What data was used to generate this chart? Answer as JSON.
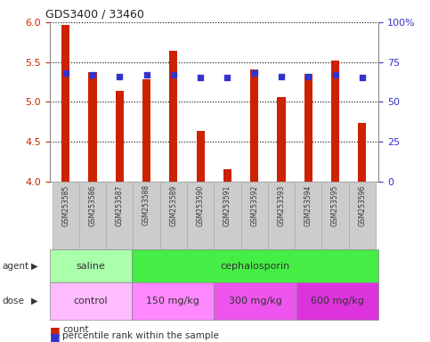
{
  "title": "GDS3400 / 33460",
  "samples": [
    "GSM253585",
    "GSM253586",
    "GSM253587",
    "GSM253588",
    "GSM253589",
    "GSM253590",
    "GSM253591",
    "GSM253592",
    "GSM253593",
    "GSM253594",
    "GSM253595",
    "GSM253596"
  ],
  "counts": [
    5.97,
    5.37,
    5.14,
    5.28,
    5.64,
    4.63,
    4.15,
    5.41,
    5.06,
    5.35,
    5.52,
    4.73
  ],
  "percentile_ranks": [
    68,
    67,
    66,
    67,
    67,
    65,
    65,
    68,
    66,
    66,
    67,
    65
  ],
  "ylim": [
    4.0,
    6.0
  ],
  "yticks": [
    4.0,
    4.5,
    5.0,
    5.5,
    6.0
  ],
  "y2lim": [
    0,
    100
  ],
  "y2ticks": [
    0,
    25,
    50,
    75,
    100
  ],
  "y2labels": [
    "0",
    "25",
    "50",
    "75",
    "100%"
  ],
  "bar_color": "#CC2200",
  "dot_color": "#3333CC",
  "grid_color": "#000000",
  "agent_groups": [
    {
      "text": "saline",
      "start": 0,
      "end": 3,
      "color": "#AAFFAA"
    },
    {
      "text": "cephalosporin",
      "start": 3,
      "end": 12,
      "color": "#44EE44"
    }
  ],
  "dose_groups": [
    {
      "text": "control",
      "start": 0,
      "end": 3,
      "color": "#FFBBFF"
    },
    {
      "text": "150 mg/kg",
      "start": 3,
      "end": 6,
      "color": "#FF88FF"
    },
    {
      "text": "300 mg/kg",
      "start": 6,
      "end": 9,
      "color": "#EE55EE"
    },
    {
      "text": "600 mg/kg",
      "start": 9,
      "end": 12,
      "color": "#DD33DD"
    }
  ],
  "legend_count_color": "#CC2200",
  "legend_dot_color": "#3333CC",
  "bg_color": "#FFFFFF",
  "tick_label_color_left": "#CC2200",
  "tick_label_color_right": "#3333CC",
  "tick_box_color": "#CCCCCC",
  "bar_width": 0.3
}
